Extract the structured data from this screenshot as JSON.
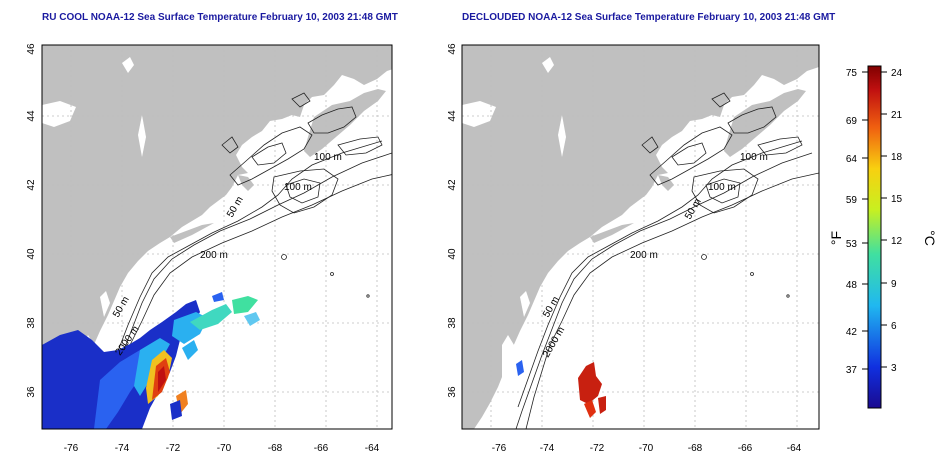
{
  "panels": [
    {
      "title": "RU COOL NOAA-12 Sea Surface Temperature February 10, 2003 21:48 GMT",
      "x_ticks": [
        "-76",
        "-74",
        "-72",
        "-70",
        "-68",
        "-66",
        "-64"
      ],
      "y_ticks": [
        "46",
        "44",
        "42",
        "40",
        "38",
        "36"
      ],
      "contour_labels": [
        "100 m",
        "100 m",
        "50 m",
        "200 m",
        "50 m",
        "2000 m"
      ]
    },
    {
      "title": "DECLOUDED NOAA-12 Sea Surface Temperature February 10, 2003 21:48 GMT",
      "x_ticks": [
        "-76",
        "-74",
        "-72",
        "-70",
        "-68",
        "-66",
        "-64"
      ],
      "y_ticks": [
        "46",
        "44",
        "42",
        "40",
        "38",
        "36"
      ],
      "contour_labels": [
        "100 m",
        "100 m",
        "50 m",
        "200 m",
        "50 m",
        "2000 m"
      ]
    }
  ],
  "colorbar": {
    "fahrenheit_label": "°F",
    "celsius_label": "°C",
    "fahrenheit_ticks": [
      "75",
      "69",
      "64",
      "59",
      "53",
      "48",
      "42",
      "37"
    ],
    "celsius_ticks": [
      "24",
      "21",
      "18",
      "15",
      "12",
      "9",
      "6",
      "3"
    ]
  },
  "colors": {
    "land": "#c0c0c0",
    "ocean": "#ffffff",
    "title": "#1a1aa0",
    "cold": "#1030c0",
    "warm": "#d02010"
  }
}
